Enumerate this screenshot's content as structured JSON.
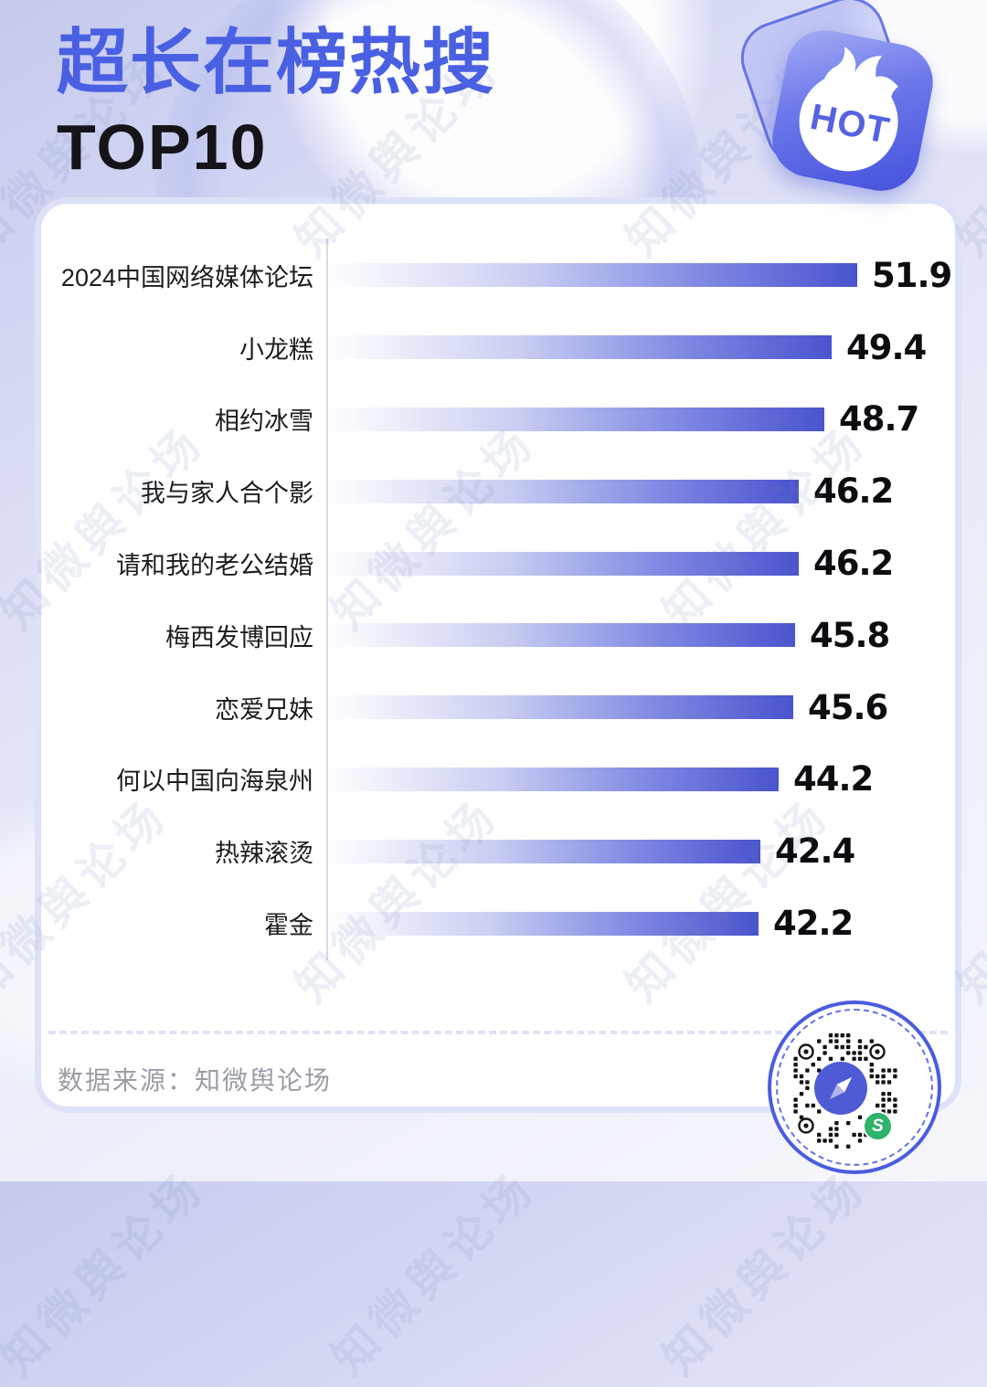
{
  "header": {
    "title_line1": "超长在榜热搜",
    "title_line2": "TOP10"
  },
  "badge": {
    "label": "HOT"
  },
  "watermark": {
    "text": "知微舆论场"
  },
  "chart_data": {
    "type": "bar",
    "orientation": "horizontal",
    "title": "超长在榜热搜 TOP10",
    "categories": [
      "2024中国网络媒体论坛",
      "小龙糕",
      "相约冰雪",
      "我与家人合个影",
      "请和我的老公结婚",
      "梅西发博回应",
      "恋爱兄妹",
      "何以中国向海泉州",
      "热辣滚烫",
      "霍金"
    ],
    "values": [
      51.9,
      49.4,
      48.7,
      46.2,
      46.2,
      45.8,
      45.6,
      44.2,
      42.4,
      42.2
    ],
    "xlim": [
      0,
      52
    ],
    "grid": false,
    "legend": "none",
    "value_labels_shown": true,
    "bar_gradient": [
      "#ffffff",
      "#4a54cd"
    ]
  },
  "footer": {
    "source": "数据来源：知微舆论场"
  },
  "colors": {
    "accent_blue": "#4a60e2",
    "bar_deep": "#4a54cd",
    "title_dark": "#141419",
    "card_border": "#dadff7",
    "source_gray": "#9a9ca6",
    "qr_blue": "#4a5ce0",
    "badge_green": "#2fb26a"
  }
}
